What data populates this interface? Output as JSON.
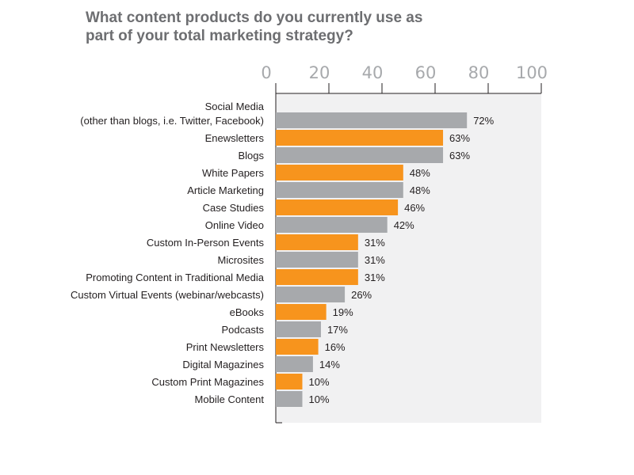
{
  "chart_data": {
    "type": "bar",
    "orientation": "horizontal",
    "title": "What content products do you currently use as part of your total marketing strategy?",
    "xlim": [
      0,
      100
    ],
    "ticks": [
      "0",
      "20",
      "40",
      "60",
      "80",
      "100"
    ],
    "value_suffix": "%",
    "colors": {
      "odd": "#a7a9ac",
      "even": "#f7941d",
      "plot_bg": "#f1f1f2",
      "axis": "#231f20"
    },
    "categories": [
      [
        "Social Media",
        "(other than blogs, i.e. Twitter, Facebook)"
      ],
      [
        "Enewsletters"
      ],
      [
        "Blogs"
      ],
      [
        "White Papers"
      ],
      [
        "Article Marketing"
      ],
      [
        "Case Studies"
      ],
      [
        "Online Video"
      ],
      [
        "Custom In-Person Events"
      ],
      [
        "Microsites"
      ],
      [
        "Promoting Content in Traditional Media"
      ],
      [
        "Custom Virtual Events (webinar/webcasts)"
      ],
      [
        "eBooks"
      ],
      [
        "Podcasts"
      ],
      [
        "Print Newsletters"
      ],
      [
        "Digital Magazines"
      ],
      [
        "Custom Print Magazines"
      ],
      [
        "Mobile Content"
      ]
    ],
    "values": [
      72,
      63,
      63,
      48,
      48,
      46,
      42,
      31,
      31,
      31,
      26,
      19,
      17,
      16,
      14,
      10,
      10
    ],
    "bar_colors": [
      "#a7a9ac",
      "#f7941d",
      "#a7a9ac",
      "#f7941d",
      "#a7a9ac",
      "#f7941d",
      "#a7a9ac",
      "#f7941d",
      "#a7a9ac",
      "#f7941d",
      "#a7a9ac",
      "#f7941d",
      "#a7a9ac",
      "#f7941d",
      "#a7a9ac",
      "#f7941d",
      "#a7a9ac"
    ]
  }
}
